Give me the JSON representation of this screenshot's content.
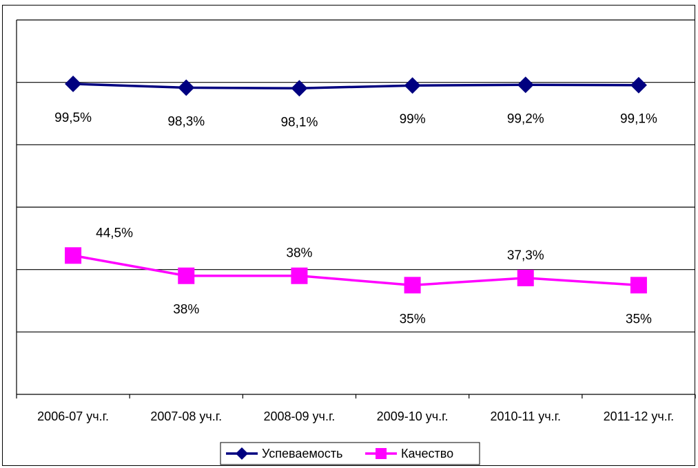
{
  "chart_data": {
    "type": "line",
    "categories": [
      "2006-07 уч.г.",
      "2007-08 уч.г.",
      "2008-09 уч.г.",
      "2009-10 уч.г.",
      "2010-11 уч.г.",
      "2011-12 уч.г."
    ],
    "series": [
      {
        "name": "Успеваемость",
        "values": [
          99.5,
          98.3,
          98.1,
          99,
          99.2,
          99.1
        ],
        "labels": [
          "99,5%",
          "98,3%",
          "98,1%",
          "99%",
          "99,2%",
          "99,1%"
        ],
        "color": "#000080",
        "marker": "diamond"
      },
      {
        "name": "Качество",
        "values": [
          44.5,
          38,
          38,
          35,
          37.3,
          35
        ],
        "labels": [
          "44,5%",
          "38%",
          "38%",
          "35%",
          "37,3%",
          "35%"
        ],
        "color": "#FF00FF",
        "marker": "square"
      }
    ],
    "ylim": [
      0,
      120
    ],
    "grid": true,
    "legend": "bottom"
  }
}
